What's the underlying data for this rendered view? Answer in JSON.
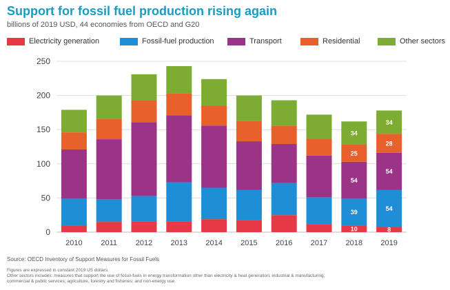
{
  "title": "Support for fossil fuel production rising again",
  "subtitle": "billions of 2019 USD, 44 economies from OECD and G20",
  "source": "Source: OECD Inventory of Support Measures for Fossil Fuels",
  "notes": [
    "Figures are expressed in constant 2019 US dollars.",
    "Other sectors includes: measures that support the use of fossil-fuels in energy transformation other than electricity & heat generation; industrial & manufacturing;",
    "commercial & public services; agriculture, forestry and fisheries; and non-energy use."
  ],
  "chart_data": {
    "type": "bar",
    "stacked": true,
    "categories": [
      "2010",
      "2011",
      "2012",
      "2013",
      "2014",
      "2015",
      "2016",
      "2017",
      "2018",
      "2019"
    ],
    "series": [
      {
        "name": "Electricity generation",
        "color": "#e63946",
        "values": [
          10,
          15,
          16,
          16,
          19,
          18,
          25,
          12,
          10,
          8
        ]
      },
      {
        "name": "Fossil-fuel production",
        "color": "#1e8fd6",
        "values": [
          39,
          33,
          37,
          57,
          46,
          44,
          47,
          39,
          39,
          54
        ]
      },
      {
        "name": "Transport",
        "color": "#9b3386",
        "values": [
          72,
          88,
          108,
          98,
          91,
          71,
          57,
          61,
          54,
          54
        ]
      },
      {
        "name": "Residential",
        "color": "#e8612c",
        "values": [
          25,
          30,
          32,
          32,
          29,
          30,
          27,
          25,
          25,
          28
        ]
      },
      {
        "name": "Other sectors",
        "color": "#7cad32",
        "values": [
          33,
          34,
          38,
          40,
          39,
          37,
          37,
          35,
          34,
          34
        ]
      }
    ],
    "data_labels": {
      "2018": [
        10,
        39,
        54,
        25,
        34
      ],
      "2019": [
        8,
        54,
        54,
        28,
        34
      ]
    },
    "yticks": [
      0,
      50,
      100,
      150,
      200,
      250
    ],
    "ylim": [
      0,
      250
    ],
    "grid": true,
    "legend": "top"
  }
}
